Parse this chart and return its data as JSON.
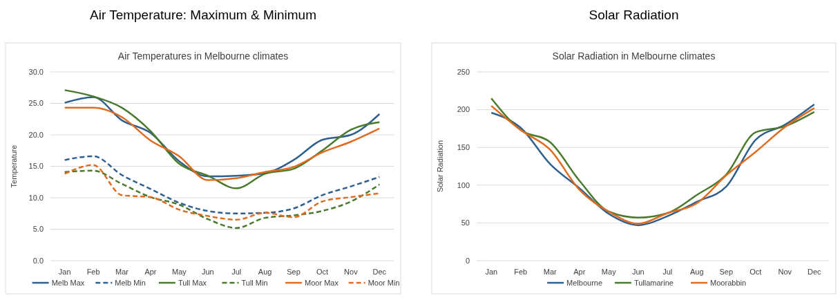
{
  "chart_data": [
    {
      "type": "line",
      "title": "Air Temperature: Maximum & Minimum",
      "subtitle": "Air Temperatures in Melbourne climates",
      "ylabel": "Temperature",
      "categories": [
        "Jan",
        "Feb",
        "Mar",
        "Apr",
        "May",
        "Jun",
        "Jul",
        "Aug",
        "Sep",
        "Oct",
        "Nov",
        "Dec"
      ],
      "series": [
        {
          "name": "Melb Max",
          "color": "#2e5f8e",
          "line_style": "solid",
          "values": [
            25.1,
            26.0,
            22.3,
            20.3,
            15.8,
            13.4,
            13.5,
            13.9,
            16.0,
            19.2,
            20.0,
            23.3
          ]
        },
        {
          "name": "Melb Min",
          "color": "#2e5f8e",
          "line_style": "dashed",
          "values": [
            16.0,
            16.6,
            13.6,
            11.4,
            9.2,
            7.9,
            7.5,
            7.6,
            8.3,
            10.4,
            11.8,
            13.3
          ]
        },
        {
          "name": "Tull Max",
          "color": "#4a7a2c",
          "line_style": "solid",
          "values": [
            27.1,
            26.1,
            24.3,
            20.6,
            15.4,
            13.5,
            11.5,
            13.8,
            14.6,
            17.5,
            20.8,
            22.0
          ]
        },
        {
          "name": "Tull Min",
          "color": "#4a7a2c",
          "line_style": "dashed",
          "values": [
            14.1,
            14.3,
            12.2,
            10.1,
            8.9,
            6.6,
            5.2,
            6.8,
            7.2,
            7.9,
            9.4,
            12.1
          ]
        },
        {
          "name": "Moor Max",
          "color": "#e06a1f",
          "line_style": "solid",
          "values": [
            24.3,
            24.3,
            22.8,
            19.1,
            16.6,
            12.8,
            13.1,
            14.1,
            14.9,
            17.2,
            18.9,
            21.0
          ]
        },
        {
          "name": "Moor Min",
          "color": "#e06a1f",
          "line_style": "dashed",
          "values": [
            13.8,
            15.2,
            10.4,
            10.1,
            8.1,
            7.1,
            6.5,
            7.6,
            6.9,
            9.4,
            10.1,
            10.7
          ]
        }
      ],
      "ylim": [
        0,
        30
      ],
      "yticks": [
        {
          "value": 0,
          "label": "0.0"
        },
        {
          "value": 5,
          "label": "5.0"
        },
        {
          "value": 10,
          "label": "10.0"
        },
        {
          "value": 15,
          "label": "15.0"
        },
        {
          "value": 20,
          "label": "20.0"
        },
        {
          "value": 25,
          "label": "25.0"
        },
        {
          "value": 30,
          "label": "30.0"
        }
      ],
      "grid": "y",
      "legend": "bottom",
      "marker": "none"
    },
    {
      "type": "line",
      "title": "Solar Radiation",
      "subtitle": "Solar Radiation in Melbourne climates",
      "ylabel": "Solar Radiation",
      "categories": [
        "Jan",
        "Feb",
        "Mar",
        "Apr",
        "May",
        "Jun",
        "Jul",
        "Aug",
        "Sep",
        "Oct",
        "Nov",
        "Dec"
      ],
      "series": [
        {
          "name": "Melbourne",
          "color": "#2e5f8e",
          "values": [
            196,
            176,
            128,
            96,
            62,
            47,
            59,
            78,
            98,
            160,
            180,
            207
          ]
        },
        {
          "name": "Tullamarine",
          "color": "#4a7a2c",
          "values": [
            215,
            173,
            157,
            106,
            65,
            57,
            63,
            87,
            114,
            170,
            178,
            197
          ]
        },
        {
          "name": "Moorabbin",
          "color": "#e06a1f",
          "values": [
            205,
            173,
            147,
            94,
            65,
            49,
            63,
            76,
            113,
            144,
            177,
            202
          ]
        }
      ],
      "ylim": [
        0,
        250
      ],
      "yticks": [
        0,
        50,
        100,
        150,
        200,
        250
      ],
      "grid": "y",
      "legend": "bottom",
      "marker": "none",
      "line_style": "solid"
    }
  ]
}
